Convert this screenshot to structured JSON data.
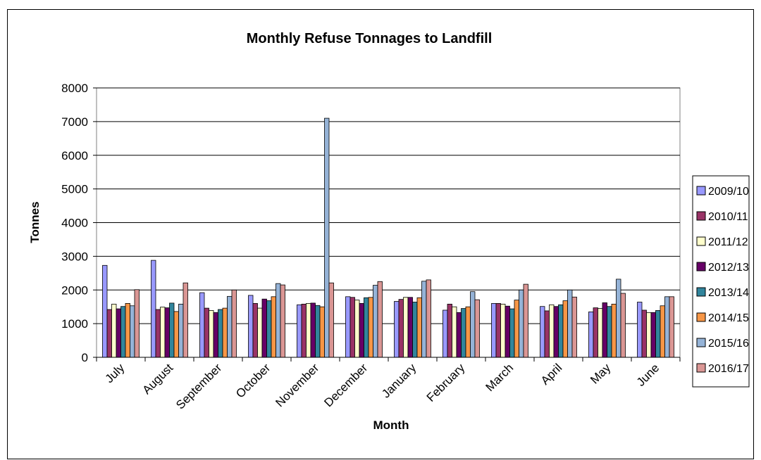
{
  "chart_data": {
    "type": "bar",
    "title": "Monthly Refuse Tonnages to Landfill",
    "xlabel": "Month",
    "ylabel": "Tonnes",
    "ylim": [
      0,
      8000
    ],
    "yticks": [
      "0",
      "1000",
      "2000",
      "3000",
      "4000",
      "5000",
      "6000",
      "7000",
      "8000"
    ],
    "grid": "horizontal",
    "legend_position": "right",
    "categories": [
      "July",
      "August",
      "September",
      "October",
      "November",
      "December",
      "January",
      "February",
      "March",
      "April",
      "May",
      "June"
    ],
    "series": [
      {
        "name": "2009/10",
        "color": "#9999FF",
        "values": [
          2730,
          2880,
          1920,
          1840,
          1560,
          1800,
          1660,
          1400,
          1600,
          1510,
          1350,
          1640
        ]
      },
      {
        "name": "2010/11",
        "color": "#993366",
        "values": [
          1420,
          1420,
          1460,
          1600,
          1580,
          1780,
          1720,
          1580,
          1600,
          1380,
          1470,
          1400
        ]
      },
      {
        "name": "2011/12",
        "color": "#FFFFCC",
        "values": [
          1580,
          1490,
          1390,
          1460,
          1600,
          1700,
          1780,
          1500,
          1580,
          1560,
          1450,
          1330
        ]
      },
      {
        "name": "2012/13",
        "color": "#660066",
        "values": [
          1440,
          1470,
          1330,
          1730,
          1610,
          1600,
          1780,
          1330,
          1520,
          1510,
          1620,
          1330
        ]
      },
      {
        "name": "2013/14",
        "color": "#31859C",
        "values": [
          1510,
          1610,
          1420,
          1680,
          1540,
          1770,
          1640,
          1450,
          1440,
          1560,
          1510,
          1390
        ]
      },
      {
        "name": "2014/15",
        "color": "#F79646",
        "values": [
          1600,
          1360,
          1460,
          1800,
          1500,
          1780,
          1770,
          1500,
          1700,
          1680,
          1580,
          1530
        ]
      },
      {
        "name": "2015/16",
        "color": "#95B3D7",
        "values": [
          1530,
          1580,
          1810,
          2190,
          7100,
          2140,
          2260,
          1950,
          2000,
          2000,
          2320,
          1800
        ]
      },
      {
        "name": "2016/17",
        "color": "#DA9694",
        "values": [
          2010,
          2210,
          2000,
          2150,
          2210,
          2250,
          2300,
          1710,
          2170,
          1790,
          1900,
          1800
        ]
      }
    ]
  }
}
